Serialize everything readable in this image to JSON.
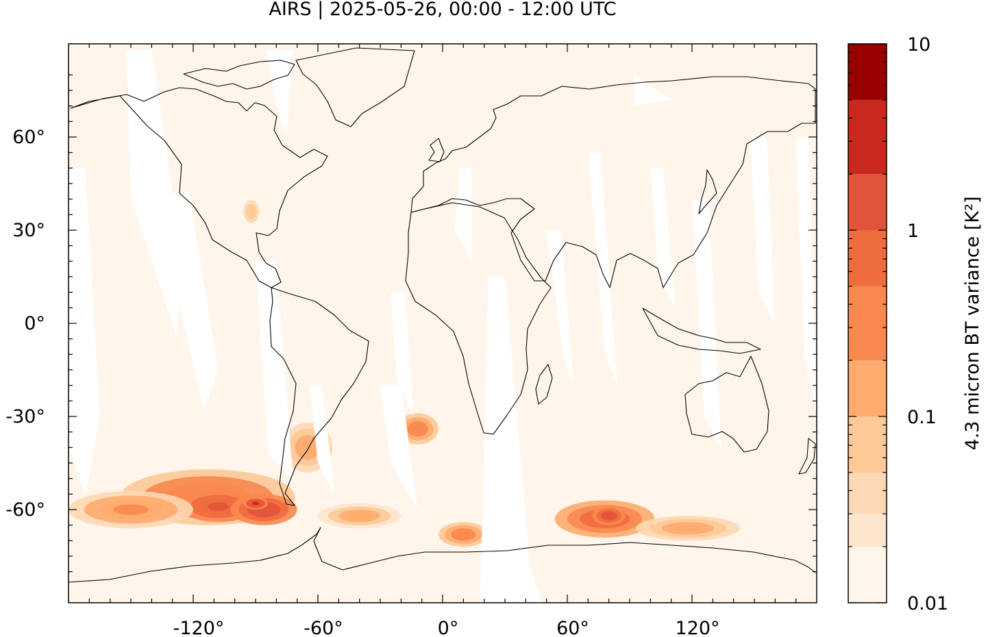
{
  "title": "AIRS | 2025-05-26, 00:00 - 12:00 UTC",
  "map": {
    "projection": "equirectangular",
    "lon_range": [
      -180,
      180
    ],
    "lat_range": [
      -90,
      90
    ],
    "lat_ticks": [
      {
        "value": 60,
        "label": "60°"
      },
      {
        "value": 30,
        "label": "30°"
      },
      {
        "value": 0,
        "label": "0°"
      },
      {
        "value": -30,
        "label": "-30°"
      },
      {
        "value": -60,
        "label": "-60°"
      }
    ],
    "lon_ticks": [
      {
        "value": -120,
        "label": "-120°"
      },
      {
        "value": -60,
        "label": "-60°"
      },
      {
        "value": 0,
        "label": "0°"
      },
      {
        "value": 60,
        "label": "60°"
      },
      {
        "value": 120,
        "label": "120°"
      }
    ],
    "background_color": "#fff5eb",
    "coastline_color": "#000000",
    "data_gaps": [
      {
        "name": "gap-1",
        "points": [
          [
            -152,
            88
          ],
          [
            -140,
            88
          ],
          [
            -125,
            20
          ],
          [
            -128,
            -4
          ],
          [
            -150,
            40
          ]
        ]
      },
      {
        "name": "gap-2",
        "points": [
          [
            -180,
            50
          ],
          [
            -172,
            50
          ],
          [
            -165,
            -30
          ],
          [
            -172,
            -55
          ],
          [
            -180,
            -40
          ]
        ]
      },
      {
        "name": "gap-3",
        "points": [
          [
            -130,
            42
          ],
          [
            -122,
            42
          ],
          [
            -108,
            -15
          ],
          [
            -115,
            -28
          ],
          [
            -128,
            10
          ]
        ]
      },
      {
        "name": "gap-4",
        "points": [
          [
            -85,
            88
          ],
          [
            -72,
            88
          ],
          [
            -75,
            60
          ],
          [
            -80,
            70
          ]
        ]
      },
      {
        "name": "gap-5",
        "points": [
          [
            -90,
            20
          ],
          [
            -80,
            20
          ],
          [
            -72,
            -50
          ],
          [
            -84,
            -42
          ]
        ]
      },
      {
        "name": "gap-6",
        "points": [
          [
            -64,
            -20
          ],
          [
            -58,
            -20
          ],
          [
            -52,
            -55
          ],
          [
            -60,
            -45
          ]
        ]
      },
      {
        "name": "gap-7",
        "points": [
          [
            -25,
            10
          ],
          [
            -18,
            10
          ],
          [
            -14,
            -30
          ],
          [
            -22,
            -18
          ]
        ]
      },
      {
        "name": "gap-8",
        "points": [
          [
            -30,
            -20
          ],
          [
            -20,
            -20
          ],
          [
            -12,
            -60
          ],
          [
            -25,
            -45
          ]
        ]
      },
      {
        "name": "gap-9",
        "points": [
          [
            8,
            50
          ],
          [
            14,
            50
          ],
          [
            14,
            20
          ],
          [
            6,
            30
          ]
        ]
      },
      {
        "name": "gap-10",
        "points": [
          [
            22,
            15
          ],
          [
            30,
            15
          ],
          [
            42,
            -78
          ],
          [
            48,
            -90
          ],
          [
            18,
            -90
          ],
          [
            20,
            -40
          ]
        ]
      },
      {
        "name": "gap-11",
        "points": [
          [
            50,
            30
          ],
          [
            57,
            30
          ],
          [
            63,
            -20
          ],
          [
            58,
            -10
          ]
        ]
      },
      {
        "name": "gap-12",
        "points": [
          [
            70,
            55
          ],
          [
            76,
            55
          ],
          [
            84,
            -20
          ],
          [
            78,
            -10
          ]
        ]
      },
      {
        "name": "gap-13",
        "points": [
          [
            92,
            80
          ],
          [
            110,
            72
          ],
          [
            92,
            70
          ]
        ]
      },
      {
        "name": "gap-14",
        "points": [
          [
            100,
            50
          ],
          [
            106,
            50
          ],
          [
            112,
            5
          ],
          [
            104,
            15
          ]
        ]
      },
      {
        "name": "gap-15",
        "points": [
          [
            120,
            40
          ],
          [
            128,
            40
          ],
          [
            134,
            -40
          ],
          [
            126,
            -30
          ]
        ]
      },
      {
        "name": "gap-16",
        "points": [
          [
            148,
            60
          ],
          [
            156,
            60
          ],
          [
            160,
            0
          ],
          [
            152,
            10
          ]
        ]
      },
      {
        "name": "gap-17",
        "points": [
          [
            170,
            60
          ],
          [
            176,
            60
          ],
          [
            180,
            -30
          ],
          [
            174,
            -10
          ]
        ]
      }
    ],
    "variance_patches": [
      {
        "name": "patch-pacific-south",
        "lon": -113,
        "lat": -56,
        "rlon": 42,
        "rlat": 9,
        "value": 0.5
      },
      {
        "name": "patch-pacific-core",
        "lon": -108,
        "lat": -59,
        "rlon": 18,
        "rlat": 5,
        "value": 1.3
      },
      {
        "name": "patch-drake",
        "lon": -86,
        "lat": -60,
        "rlon": 16,
        "rlat": 5,
        "value": 1.6
      },
      {
        "name": "patch-drake-core",
        "lon": -90,
        "lat": -58,
        "rlon": 6,
        "rlat": 2,
        "value": 2.5
      },
      {
        "name": "patch-westerly-belt",
        "lon": -150,
        "lat": -60,
        "rlon": 30,
        "rlat": 6,
        "value": 0.25
      },
      {
        "name": "patch-patagonia",
        "lon": -65,
        "lat": -40,
        "rlon": 12,
        "rlat": 8,
        "value": 0.2
      },
      {
        "name": "patch-south-atlantic",
        "lon": -12,
        "lat": -34,
        "rlon": 10,
        "rlat": 5,
        "value": 0.3
      },
      {
        "name": "patch-weddell",
        "lon": -40,
        "lat": -62,
        "rlon": 20,
        "rlat": 4,
        "value": 0.15
      },
      {
        "name": "patch-africa-south",
        "lon": 10,
        "lat": -68,
        "rlon": 12,
        "rlat": 4,
        "value": 0.35
      },
      {
        "name": "patch-indian-ocean",
        "lon": 78,
        "lat": -63,
        "rlon": 24,
        "rlat": 6,
        "value": 0.7
      },
      {
        "name": "patch-kerguelen",
        "lon": 80,
        "lat": -62,
        "rlon": 8,
        "rlat": 3,
        "value": 1.8
      },
      {
        "name": "patch-east-antarctica",
        "lon": 118,
        "lat": -66,
        "rlon": 25,
        "rlat": 4,
        "value": 0.2
      },
      {
        "name": "patch-north-america",
        "lon": -92,
        "lat": 36,
        "rlon": 5,
        "rlat": 5,
        "value": 0.08
      }
    ]
  },
  "colorbar": {
    "label": "4.3 micron BT variance [K²]",
    "scale": "log",
    "range": [
      0.01,
      10
    ],
    "tick_labels": [
      {
        "value": 10,
        "label": "10"
      },
      {
        "value": 1,
        "label": "1"
      },
      {
        "value": 0.1,
        "label": "0.1"
      },
      {
        "value": 0.01,
        "label": "0.01"
      }
    ],
    "bins": [
      {
        "upper": 0.02,
        "color": "#fff5eb"
      },
      {
        "upper": 0.03,
        "color": "#fee6ce"
      },
      {
        "upper": 0.05,
        "color": "#fdd8b4"
      },
      {
        "upper": 0.1,
        "color": "#fdc997"
      },
      {
        "upper": 0.2,
        "color": "#fdab6e"
      },
      {
        "upper": 0.5,
        "color": "#f8884f"
      },
      {
        "upper": 1,
        "color": "#ef6c3f"
      },
      {
        "upper": 2,
        "color": "#e2543a"
      },
      {
        "upper": 5,
        "color": "#c9281c"
      },
      {
        "upper": 10,
        "color": "#990000"
      }
    ]
  }
}
